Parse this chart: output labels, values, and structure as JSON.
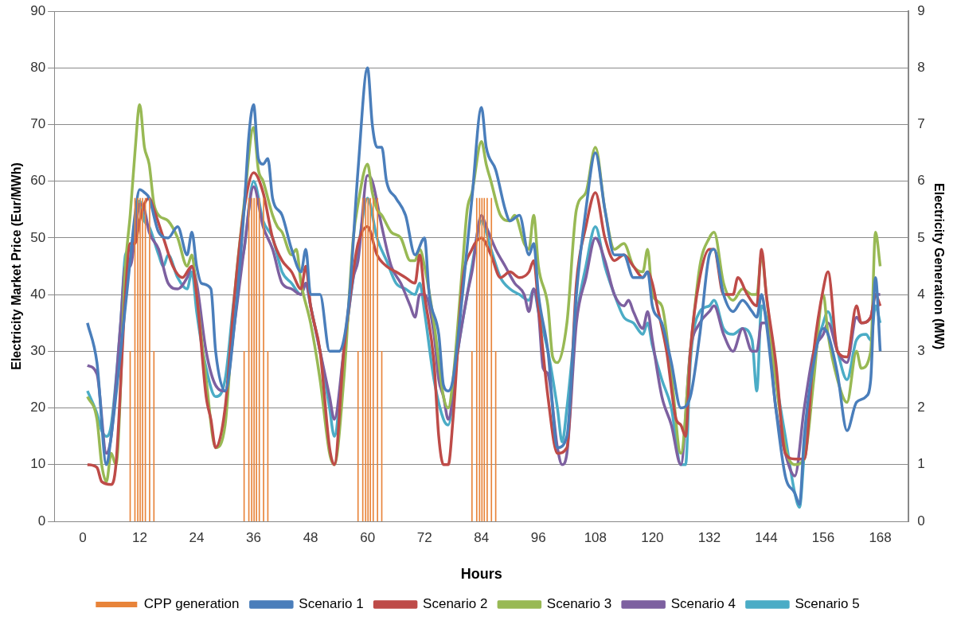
{
  "chart_data": {
    "type": "line",
    "xlabel": "Hours",
    "ylabel": "Electricity Market Price (Eur/MWh)",
    "y2label": "Electricity Generation (MW)",
    "xlim": [
      0,
      168
    ],
    "xticks": [
      0,
      12,
      24,
      36,
      48,
      60,
      72,
      84,
      96,
      108,
      120,
      132,
      144,
      156,
      168
    ],
    "ylim": [
      0,
      90
    ],
    "yticks": [
      0,
      10,
      20,
      30,
      40,
      50,
      60,
      70,
      80,
      90
    ],
    "y2lim": [
      0,
      9
    ],
    "y2ticks": [
      0,
      1,
      2,
      3,
      4,
      5,
      6,
      7,
      8,
      9
    ],
    "grid": "y",
    "legend": "bottom",
    "series": [
      {
        "name": "CPP generation",
        "type": "bar",
        "axis": "y2",
        "color": "#e8843a",
        "x": [
          10,
          11,
          11.6,
          12.1,
          12.6,
          13.2,
          14.1,
          15,
          34,
          35,
          35.6,
          36.1,
          36.6,
          37.2,
          38.1,
          39,
          58,
          59,
          59.6,
          60.1,
          60.6,
          61.2,
          62.1,
          63,
          82,
          83,
          83.6,
          84.1,
          84.6,
          85.2,
          86.1,
          87
        ],
        "values": [
          3,
          5.7,
          5.7,
          5.7,
          5.7,
          5.7,
          5.7,
          3,
          3,
          5.7,
          5.7,
          5.7,
          5.7,
          5.7,
          5.7,
          3,
          3,
          5.7,
          5.7,
          5.7,
          5.7,
          5.7,
          5.7,
          3,
          3,
          5.7,
          5.7,
          5.7,
          5.7,
          5.7,
          5.7,
          3
        ]
      },
      {
        "name": "Scenario 1",
        "color": "#4a7ebb",
        "x": [
          1,
          3,
          5,
          6,
          8,
          10,
          11,
          12,
          13,
          14,
          16,
          18,
          20,
          22,
          23,
          24,
          25,
          27,
          28,
          30,
          32,
          34,
          35,
          36,
          37,
          38,
          39,
          40,
          42,
          44,
          46,
          47,
          48,
          50,
          52,
          54,
          56,
          58,
          60,
          61,
          62,
          63,
          64,
          66,
          68,
          70,
          72,
          73,
          75,
          76,
          77,
          78,
          80,
          82,
          84,
          85,
          87,
          89,
          90,
          92,
          94,
          95,
          96,
          98,
          100,
          102,
          104,
          106,
          108,
          110,
          112,
          114,
          116,
          118,
          119,
          120,
          122,
          124,
          126,
          128,
          130,
          132,
          133,
          135,
          137,
          139,
          141,
          142,
          143,
          144,
          146,
          148,
          150,
          151,
          152,
          154,
          156,
          157,
          159,
          161,
          163,
          165,
          166,
          167,
          168
        ],
        "values": [
          35,
          28,
          10,
          15,
          30,
          46,
          54,
          58.5,
          58,
          57,
          51,
          50,
          52,
          47,
          51,
          45,
          42,
          41,
          30,
          23,
          35,
          55,
          68,
          73.5,
          64,
          63,
          64,
          57,
          54,
          48,
          44,
          48,
          40,
          40,
          30,
          30,
          38,
          62,
          80,
          70,
          66,
          66,
          60,
          57,
          54,
          47,
          50,
          40,
          33,
          24,
          23,
          25,
          40,
          57,
          73,
          66,
          62,
          55,
          53,
          54,
          47,
          49,
          40,
          30,
          13,
          15,
          40,
          55,
          65,
          55,
          47,
          47,
          43,
          43,
          44,
          38,
          35,
          28,
          20,
          22,
          33,
          47,
          48,
          40,
          37,
          39,
          37,
          36,
          40,
          35,
          20,
          8,
          5,
          3,
          15,
          28,
          34,
          33,
          26,
          16,
          21,
          22,
          25,
          43,
          30
        ]
      },
      {
        "name": "Scenario 2",
        "color": "#be4b48",
        "x": [
          1,
          3,
          4,
          6,
          7,
          9,
          10,
          11,
          12,
          13,
          14,
          15,
          17,
          19,
          21,
          23,
          24,
          26,
          27,
          28,
          30,
          32,
          34,
          36,
          38,
          40,
          42,
          44,
          46,
          47,
          48,
          50,
          52,
          53,
          55,
          57,
          58,
          60,
          62,
          64,
          66,
          68,
          70,
          71,
          72,
          74,
          75,
          76,
          77,
          78,
          80,
          82,
          84,
          86,
          88,
          90,
          92,
          94,
          95,
          96,
          98,
          100,
          102,
          104,
          106,
          108,
          110,
          112,
          114,
          116,
          118,
          119,
          120,
          121,
          123,
          125,
          126,
          127,
          128,
          130,
          132,
          133,
          135,
          137,
          138,
          140,
          142,
          143,
          144,
          146,
          148,
          150,
          152,
          154,
          156,
          157,
          159,
          161,
          163,
          164,
          166,
          167,
          168
        ],
        "values": [
          10,
          9.5,
          7,
          6.5,
          10,
          40,
          49,
          49,
          53,
          56,
          57,
          55,
          50,
          45,
          43,
          45,
          40,
          22,
          18,
          13,
          20,
          40,
          55,
          61.5,
          58,
          50,
          46,
          44,
          41,
          45,
          38,
          30,
          13,
          10,
          30,
          44,
          49,
          52,
          47,
          45,
          44,
          43,
          42,
          47,
          40,
          28,
          15,
          10,
          10,
          18,
          42,
          48,
          50,
          47,
          43,
          44,
          43,
          44,
          46,
          38,
          22,
          12,
          13,
          42,
          52,
          58,
          50,
          46,
          47,
          45,
          43,
          44,
          42,
          38,
          30,
          18,
          17,
          15,
          30,
          43,
          48,
          48,
          40,
          40,
          43,
          40,
          38,
          48,
          40,
          28,
          12,
          11,
          11,
          30,
          41,
          44,
          30,
          29,
          38,
          35,
          36,
          40,
          38
        ]
      },
      {
        "name": "Scenario 3",
        "color": "#98b954",
        "x": [
          1,
          3,
          4,
          5,
          6,
          7,
          9,
          10,
          11,
          12,
          13,
          14,
          15,
          16,
          18,
          20,
          22,
          23,
          24,
          26,
          28,
          30,
          32,
          34,
          36,
          37,
          38,
          40,
          41,
          42,
          44,
          45,
          46,
          48,
          50,
          52,
          53,
          55,
          57,
          58,
          60,
          61,
          62,
          63,
          65,
          67,
          69,
          70,
          71,
          72,
          74,
          76,
          77,
          78,
          80,
          81,
          82,
          84,
          85,
          86,
          88,
          90,
          91,
          93,
          94,
          95,
          96,
          98,
          99,
          100,
          102,
          104,
          106,
          108,
          110,
          112,
          114,
          116,
          118,
          119,
          120,
          122,
          124,
          126,
          128,
          130,
          132,
          133,
          135,
          137,
          139,
          141,
          142,
          143,
          144,
          146,
          148,
          150,
          152,
          154,
          156,
          157,
          159,
          161,
          163,
          164,
          166,
          167,
          168
        ],
        "values": [
          22,
          18,
          10,
          7,
          12,
          10,
          45,
          54,
          65,
          73.5,
          66,
          63,
          56,
          54,
          53,
          50,
          45,
          47,
          40,
          25,
          13,
          17,
          40,
          56,
          69.5,
          62,
          60,
          54,
          52,
          51,
          47,
          48,
          42,
          35,
          25,
          12,
          10,
          25,
          50,
          56,
          63,
          58,
          55,
          54,
          51,
          50,
          46,
          46,
          48,
          45,
          35,
          22,
          20,
          25,
          45,
          55,
          58,
          67,
          63,
          60,
          54,
          53,
          54,
          49,
          48,
          54,
          45,
          38,
          29,
          28,
          35,
          55,
          58,
          66,
          55,
          48,
          49,
          45,
          44,
          48,
          40,
          38,
          26,
          12,
          30,
          45,
          50,
          51,
          42,
          39,
          41,
          40,
          40,
          47,
          40,
          25,
          13,
          10,
          11,
          25,
          40,
          33,
          25,
          21,
          30,
          27,
          30,
          51,
          45
        ]
      },
      {
        "name": "Scenario 4",
        "color": "#7d60a0",
        "x": [
          1,
          3,
          5,
          6,
          8,
          9,
          10,
          11,
          12,
          13,
          14,
          16,
          18,
          20,
          22,
          23,
          24,
          26,
          28,
          30,
          32,
          34,
          36,
          38,
          40,
          42,
          44,
          46,
          47,
          48,
          50,
          52,
          53,
          55,
          57,
          58,
          60,
          61,
          63,
          65,
          67,
          69,
          70,
          71,
          72,
          74,
          75,
          76,
          77,
          79,
          81,
          82,
          84,
          85,
          87,
          89,
          91,
          93,
          94,
          95,
          96,
          97,
          98,
          100,
          101,
          102,
          104,
          106,
          108,
          110,
          112,
          114,
          115,
          116,
          118,
          119,
          120,
          122,
          124,
          126,
          128,
          130,
          132,
          133,
          135,
          137,
          139,
          141,
          142,
          143,
          144,
          146,
          148,
          150,
          152,
          154,
          156,
          157,
          159,
          161,
          163,
          164,
          166,
          167,
          168
        ],
        "values": [
          27.5,
          26,
          12,
          15,
          35,
          45,
          45,
          50,
          56,
          55,
          51,
          48,
          42,
          41,
          43,
          45,
          42,
          30,
          24,
          23,
          35,
          48,
          59,
          52,
          48,
          42,
          41,
          40,
          42,
          38,
          30,
          22,
          18,
          30,
          43,
          46,
          61,
          60,
          52,
          45,
          42,
          38,
          36,
          40,
          40,
          33,
          25,
          22,
          18,
          30,
          40,
          44,
          54,
          52,
          48,
          45,
          42,
          40,
          37,
          41,
          37,
          27,
          26,
          13,
          10,
          12,
          35,
          43,
          50,
          46,
          40,
          38,
          39,
          37,
          34,
          37,
          32,
          22,
          17,
          10,
          30,
          35,
          37,
          38,
          33,
          30,
          34,
          30,
          30,
          35,
          35,
          20,
          12,
          8,
          20,
          30,
          33,
          35,
          30,
          28,
          36,
          35,
          36,
          40,
          40
        ]
      },
      {
        "name": "Scenario 5",
        "color": "#4bacc6",
        "x": [
          1,
          3,
          4,
          5,
          6,
          8,
          9,
          10,
          11,
          12,
          13,
          14,
          16,
          17,
          18,
          20,
          22,
          23,
          24,
          26,
          28,
          30,
          32,
          34,
          36,
          38,
          40,
          42,
          44,
          46,
          47,
          48,
          50,
          52,
          53,
          55,
          57,
          58,
          60,
          62,
          64,
          66,
          68,
          70,
          71,
          72,
          74,
          76,
          77,
          79,
          81,
          82,
          84,
          86,
          88,
          90,
          92,
          94,
          95,
          96,
          98,
          100,
          101,
          102,
          104,
          106,
          108,
          110,
          112,
          114,
          116,
          118,
          119,
          120,
          122,
          124,
          126,
          127,
          128,
          130,
          132,
          133,
          135,
          137,
          139,
          141,
          142,
          143,
          144,
          146,
          148,
          150,
          151,
          152,
          154,
          156,
          157,
          159,
          161,
          163,
          165,
          166,
          167,
          168
        ],
        "values": [
          23,
          19,
          16,
          15,
          17,
          35,
          47,
          48,
          52,
          56.5,
          53,
          52,
          47,
          45,
          47,
          43,
          41,
          44,
          37,
          27,
          22,
          25,
          40,
          48,
          60,
          53,
          50,
          44,
          42,
          40,
          42,
          38,
          30,
          20,
          15,
          30,
          43,
          48,
          57,
          50,
          46,
          42,
          41,
          40,
          42,
          37,
          25,
          18,
          17,
          30,
          40,
          45,
          53,
          48,
          43,
          41,
          40,
          39,
          41,
          37,
          30,
          20,
          14,
          20,
          36,
          45,
          52,
          45,
          40,
          36,
          35,
          33,
          35,
          31,
          25,
          20,
          10,
          10,
          28,
          37,
          38,
          39,
          34,
          33,
          34,
          32,
          23,
          38,
          36,
          25,
          15,
          5,
          2.5,
          12,
          28,
          35,
          37,
          30,
          25,
          32,
          33,
          32,
          38,
          35
        ]
      }
    ]
  }
}
